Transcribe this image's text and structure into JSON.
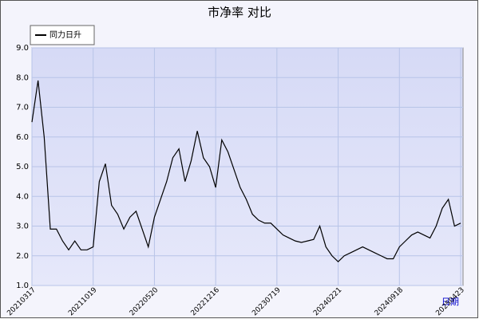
{
  "chart_data": {
    "type": "line",
    "title": "市净率  对比",
    "x_label": "日期",
    "categories": [
      "20210317",
      null,
      null,
      null,
      null,
      null,
      null,
      null,
      null,
      null,
      "20211019",
      null,
      null,
      null,
      null,
      null,
      null,
      null,
      null,
      null,
      "20220520",
      null,
      null,
      null,
      null,
      null,
      null,
      null,
      null,
      null,
      "20221216",
      null,
      null,
      null,
      null,
      null,
      null,
      null,
      null,
      null,
      "20230719",
      null,
      null,
      null,
      null,
      null,
      null,
      null,
      null,
      null,
      "20240221",
      null,
      null,
      null,
      null,
      null,
      null,
      null,
      null,
      null,
      "20240918",
      null,
      null,
      null,
      null,
      null,
      null,
      null,
      null,
      null,
      "20250423"
    ],
    "series": [
      {
        "name": "同力日升",
        "color": "#000000",
        "values": [
          6.5,
          7.9,
          6.0,
          2.9,
          2.9,
          2.5,
          2.2,
          2.5,
          2.2,
          2.2,
          2.3,
          4.5,
          5.1,
          3.7,
          3.4,
          2.9,
          3.3,
          3.5,
          2.9,
          2.3,
          3.3,
          3.9,
          4.5,
          5.3,
          5.6,
          4.5,
          5.2,
          6.2,
          5.3,
          5.0,
          4.3,
          5.9,
          5.5,
          4.9,
          4.3,
          3.9,
          3.4,
          3.2,
          3.1,
          3.1,
          2.9,
          2.7,
          2.6,
          2.5,
          2.45,
          2.5,
          2.55,
          3.0,
          2.3,
          2.0,
          1.8,
          2.0,
          2.1,
          2.2,
          2.3,
          2.2,
          2.1,
          2.0,
          1.9,
          1.9,
          2.3,
          2.5,
          2.7,
          2.8,
          2.7,
          2.6,
          3.0,
          3.6,
          3.9,
          3.0,
          3.1
        ]
      }
    ],
    "ylim": [
      1,
      9
    ],
    "yticks": [
      {
        "value": 1,
        "label": "1.0"
      },
      {
        "value": 2,
        "label": "2.0"
      },
      {
        "value": 3,
        "label": "3.0"
      },
      {
        "value": 4,
        "label": "4.0"
      },
      {
        "value": 5,
        "label": "5.0"
      },
      {
        "value": 6,
        "label": "6.0"
      },
      {
        "value": 7,
        "label": "7.0"
      },
      {
        "value": 8,
        "label": "8.0"
      },
      {
        "value": 9,
        "label": "9.0"
      }
    ],
    "grid": true
  }
}
